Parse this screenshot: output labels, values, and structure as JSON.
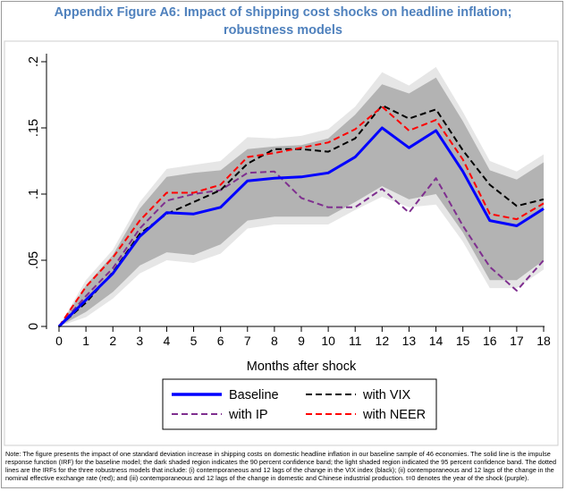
{
  "title_line1": "Appendix Figure A6: Impact of shipping cost shocks on headline inflation;",
  "title_line2": "robustness models",
  "note": "Note: The figure presents the impact of one standard deviation increase in shipping costs on domestic headline inflation in our baseline sample of 46 economies. The solid line is the impulse response function (IRF) for the baseline model; the dark shaded region indicates the 90 percent confidence band; the light shaded region indicated the 95 percent confidence band. The dotted lines are the IRFs for the three robustness models that include: (i) contemporaneous and 12 lags of the change in the VIX index (black); (ii) contemporaneous and 12 lags of the change in the nominal effective exchange rate (red); and (iii) contemporaneous and 12 lags of the change in domestic and Chinese industrial production. t=0 denotes the year of the shock (purple).",
  "chart_data": {
    "type": "line",
    "xlabel": "Months after shock",
    "ylabel": "",
    "x": [
      0,
      1,
      2,
      3,
      4,
      5,
      6,
      7,
      8,
      9,
      10,
      11,
      12,
      13,
      14,
      15,
      16,
      17,
      18
    ],
    "xlim": [
      0,
      18
    ],
    "ylim": [
      0,
      0.2
    ],
    "yticks": [
      0,
      0.05,
      0.1,
      0.15,
      0.2
    ],
    "ytick_labels": [
      "0",
      ".05",
      ".1",
      ".15",
      ".2"
    ],
    "xtick_labels": [
      "0",
      "1",
      "2",
      "3",
      "4",
      "5",
      "6",
      "7",
      "8",
      "9",
      "10",
      "11",
      "12",
      "13",
      "14",
      "15",
      "16",
      "17",
      "18"
    ],
    "grid": false,
    "bands": [
      {
        "level": "95",
        "color": "#e6e6e6",
        "upper": [
          0,
          0.035,
          0.058,
          0.094,
          0.119,
          0.122,
          0.125,
          0.143,
          0.142,
          0.144,
          0.149,
          0.166,
          0.192,
          0.182,
          0.196,
          0.162,
          0.125,
          0.117,
          0.13
        ],
        "lower": [
          0,
          0.007,
          0.021,
          0.04,
          0.05,
          0.048,
          0.055,
          0.074,
          0.077,
          0.077,
          0.077,
          0.088,
          0.098,
          0.09,
          0.092,
          0.064,
          0.029,
          0.029,
          0.043
        ]
      },
      {
        "level": "90",
        "color": "#b3b3b3",
        "upper": [
          0,
          0.031,
          0.054,
          0.089,
          0.113,
          0.116,
          0.118,
          0.134,
          0.136,
          0.137,
          0.142,
          0.16,
          0.183,
          0.176,
          0.188,
          0.155,
          0.118,
          0.111,
          0.124
        ],
        "lower": [
          0,
          0.011,
          0.026,
          0.046,
          0.056,
          0.054,
          0.062,
          0.08,
          0.083,
          0.083,
          0.083,
          0.094,
          0.106,
          0.096,
          0.1,
          0.071,
          0.035,
          0.035,
          0.05
        ]
      }
    ],
    "series": [
      {
        "name": "Baseline",
        "color": "#0000ff",
        "dash": "",
        "width": 3,
        "values": [
          0,
          0.02,
          0.04,
          0.068,
          0.086,
          0.085,
          0.09,
          0.11,
          0.112,
          0.113,
          0.116,
          0.128,
          0.15,
          0.135,
          0.148,
          0.117,
          0.08,
          0.076,
          0.089
        ]
      },
      {
        "name": "with VIX",
        "color": "#000000",
        "dash": "7,4",
        "width": 2,
        "values": [
          0,
          0.018,
          0.041,
          0.07,
          0.085,
          0.094,
          0.103,
          0.123,
          0.134,
          0.134,
          0.132,
          0.142,
          0.167,
          0.157,
          0.164,
          0.133,
          0.107,
          0.091,
          0.096
        ]
      },
      {
        "name": "with IP",
        "color": "#7f2f8f",
        "dash": "7,4",
        "width": 2,
        "values": [
          0,
          0.023,
          0.044,
          0.074,
          0.095,
          0.1,
          0.103,
          0.116,
          0.117,
          0.097,
          0.09,
          0.09,
          0.104,
          0.086,
          0.112,
          0.076,
          0.045,
          0.027,
          0.05
        ]
      },
      {
        "name": "with NEER",
        "color": "#ff0000",
        "dash": "7,4",
        "width": 2,
        "values": [
          0,
          0.03,
          0.052,
          0.08,
          0.101,
          0.101,
          0.107,
          0.128,
          0.131,
          0.135,
          0.139,
          0.149,
          0.166,
          0.148,
          0.156,
          0.126,
          0.085,
          0.081,
          0.093
        ]
      }
    ],
    "legend": {
      "placement": "bottom",
      "order": [
        "Baseline",
        "with VIX",
        "with IP",
        "with NEER"
      ]
    }
  }
}
